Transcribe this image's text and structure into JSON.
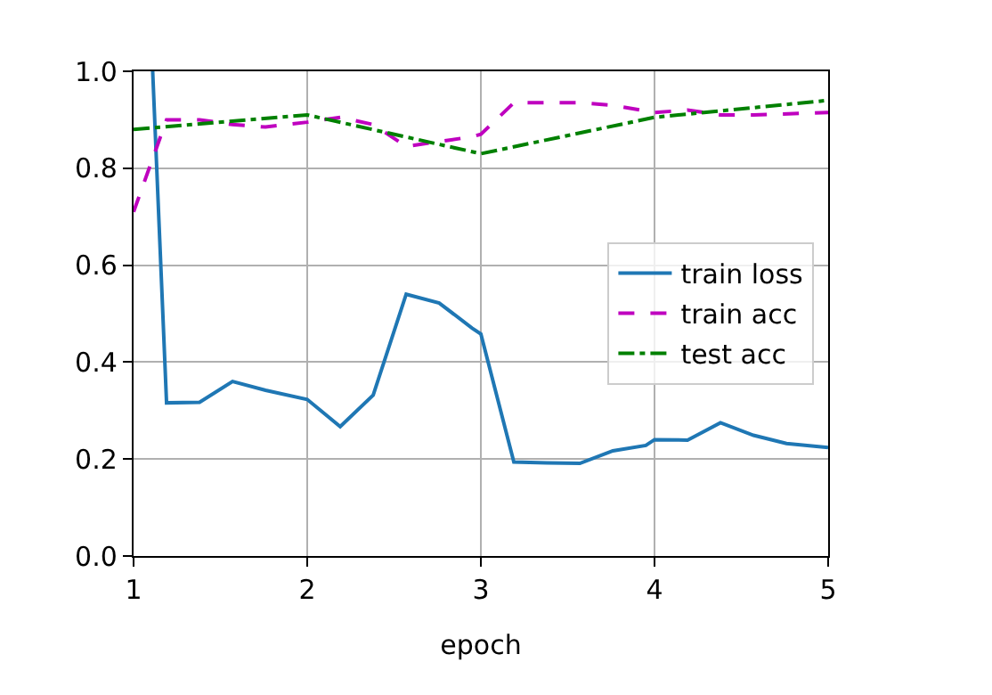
{
  "chart_data": {
    "type": "line",
    "xlabel": "epoch",
    "xlim": [
      1,
      5
    ],
    "xticks": [
      1,
      2,
      3,
      4,
      5
    ],
    "ylim": [
      0,
      1
    ],
    "yticks": [
      {
        "value": 0,
        "label": "0.0"
      },
      {
        "value": 0.2,
        "label": "0.2"
      },
      {
        "value": 0.4,
        "label": "0.4"
      },
      {
        "value": 0.6,
        "label": "0.6"
      },
      {
        "value": 0.8,
        "label": "0.8"
      },
      {
        "value": 1,
        "label": "1.0"
      }
    ],
    "grid": true,
    "legend": "right",
    "marker": "none",
    "series": [
      {
        "name": "train loss",
        "color": "#1f77b4",
        "line_style": "solid",
        "x": [
          1.11,
          1.19,
          1.38,
          1.57,
          1.76,
          2.0,
          2.19,
          2.38,
          2.57,
          2.76,
          2.95,
          3.0,
          3.19,
          3.38,
          3.57,
          3.76,
          3.95,
          4.0,
          4.19,
          4.38,
          4.57,
          4.76,
          5.0
        ],
        "values": [
          1.0,
          0.316,
          0.317,
          0.36,
          0.342,
          0.323,
          0.267,
          0.332,
          0.54,
          0.522,
          0.47,
          0.458,
          0.194,
          0.192,
          0.191,
          0.217,
          0.228,
          0.24,
          0.239,
          0.275,
          0.249,
          0.232,
          0.224
        ]
      },
      {
        "name": "train acc",
        "color": "#bf00bf",
        "line_style": "dashed",
        "x": [
          1.0,
          1.19,
          1.38,
          1.57,
          1.76,
          2.0,
          2.19,
          2.38,
          2.57,
          2.76,
          2.95,
          3.0,
          3.19,
          3.57,
          3.76,
          4.0,
          4.19,
          4.38,
          4.57,
          5.0
        ],
        "values": [
          0.71,
          0.9,
          0.9,
          0.89,
          0.885,
          0.895,
          0.905,
          0.89,
          0.845,
          0.855,
          0.865,
          0.87,
          0.935,
          0.935,
          0.93,
          0.915,
          0.92,
          0.91,
          0.91,
          0.915
        ]
      },
      {
        "name": "test acc",
        "color": "#008000",
        "line_style": "dashdot",
        "x": [
          1,
          2,
          3,
          4,
          5
        ],
        "values": [
          0.88,
          0.91,
          0.83,
          0.905,
          0.94
        ]
      }
    ]
  }
}
